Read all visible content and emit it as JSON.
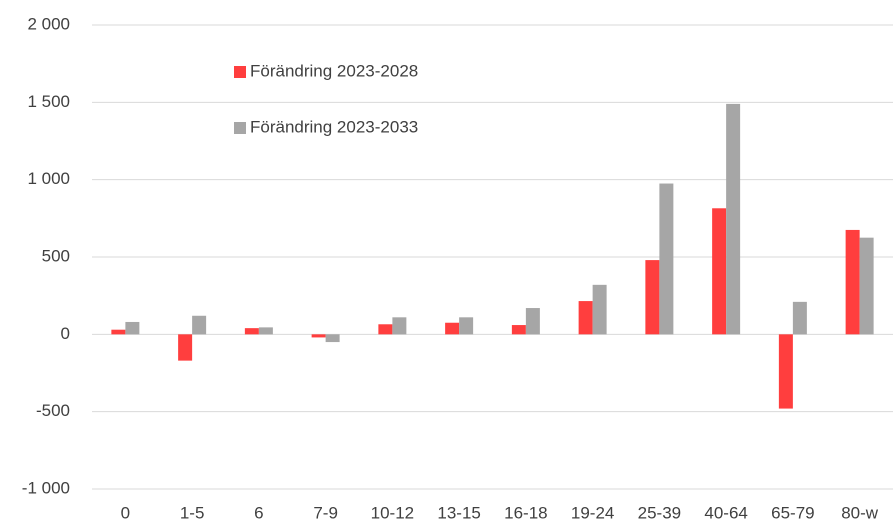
{
  "chart_data": {
    "type": "bar",
    "categories": [
      "0",
      "1-5",
      "6",
      "7-9",
      "10-12",
      "13-15",
      "16-18",
      "19-24",
      "25-39",
      "40-64",
      "65-79",
      "80-w"
    ],
    "series": [
      {
        "name": "Förändring 2023-2028",
        "color": "#ff3e3e",
        "values": [
          30,
          -170,
          40,
          -20,
          65,
          75,
          60,
          215,
          480,
          815,
          -480,
          675
        ]
      },
      {
        "name": "Förändring 2023-2033",
        "color": "#a6a6a6",
        "values": [
          80,
          120,
          45,
          -50,
          110,
          110,
          170,
          320,
          975,
          1490,
          210,
          625
        ]
      }
    ],
    "ylim": [
      -1000,
      2000
    ],
    "yticks": [
      {
        "value": -1000,
        "label": "-1 000"
      },
      -500,
      0,
      500,
      {
        "value": 1000,
        "label": "1 000"
      },
      {
        "value": 1500,
        "label": "1 500"
      },
      {
        "value": 2000,
        "label": "2 000"
      }
    ],
    "grid": true,
    "legend": "upper-left"
  }
}
